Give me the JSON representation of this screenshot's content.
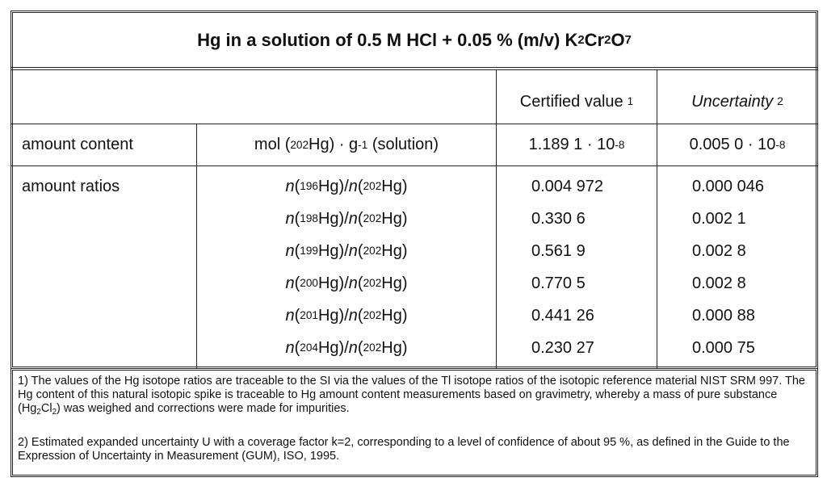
{
  "title": [
    "Hg in a solution of 0.5 M HCl + 0.05 % (m/v) K",
    "2",
    "Cr",
    "2",
    "O",
    "7"
  ],
  "header": {
    "certified": [
      "Certified value",
      "1"
    ],
    "uncertainty": [
      "Uncertainty",
      "2"
    ]
  },
  "amount_content": {
    "label": "amount content",
    "unit": [
      "mol (",
      "202",
      "Hg) · g",
      "-1",
      " (solution)"
    ],
    "value": [
      "1.189 1 · 10",
      "-8"
    ],
    "uncertainty": [
      "0.005 0 · 10",
      "-8"
    ]
  },
  "amount_ratios": {
    "label": "amount ratios",
    "rows": [
      {
        "ratio": [
          "n",
          "(",
          "196",
          "Hg)/",
          "n",
          "(",
          "202",
          "Hg)"
        ],
        "value": "0.004 972",
        "uncertainty": "0.000 046"
      },
      {
        "ratio": [
          "n",
          "(",
          "198",
          "Hg)/",
          "n",
          "(",
          "202",
          "Hg)"
        ],
        "value": "0.330 6",
        "uncertainty": "0.002 1"
      },
      {
        "ratio": [
          "n",
          "(",
          "199",
          "Hg)/",
          "n",
          "(",
          "202",
          "Hg)"
        ],
        "value": "0.561 9",
        "uncertainty": "0.002 8"
      },
      {
        "ratio": [
          "n",
          "(",
          "200",
          "Hg)/",
          "n",
          "(",
          "202",
          "Hg)"
        ],
        "value": "0.770 5",
        "uncertainty": "0.002 8"
      },
      {
        "ratio": [
          "n",
          "(",
          "201",
          "Hg)/",
          "n",
          "(",
          "202",
          "Hg)"
        ],
        "value": "0.441 26",
        "uncertainty": "0.000 88"
      },
      {
        "ratio": [
          "n",
          "(",
          "204",
          "Hg)/",
          "n",
          "(",
          "202",
          "Hg)"
        ],
        "value": "0.230 27",
        "uncertainty": "0.000 75"
      }
    ]
  },
  "footnotes": [
    [
      "1) The values of the Hg isotope ratios are traceable to the SI via the values of the Tl isotope ratios of the isotopic reference material NIST SRM 997. The Hg content of this natural isotopic spike is traceable to Hg amount content measurements based on gravimetry, whereby a mass of pure substance (Hg",
      "2",
      "Cl",
      "2",
      ") was weighed and corrections were made for impurities."
    ],
    [
      "2) Estimated expanded uncertainty U with a coverage factor k=2, corresponding to a level of confidence of about 95 %, as defined in the Guide to the Expression of Uncertainty in Measurement (GUM), ISO, 1995."
    ]
  ]
}
